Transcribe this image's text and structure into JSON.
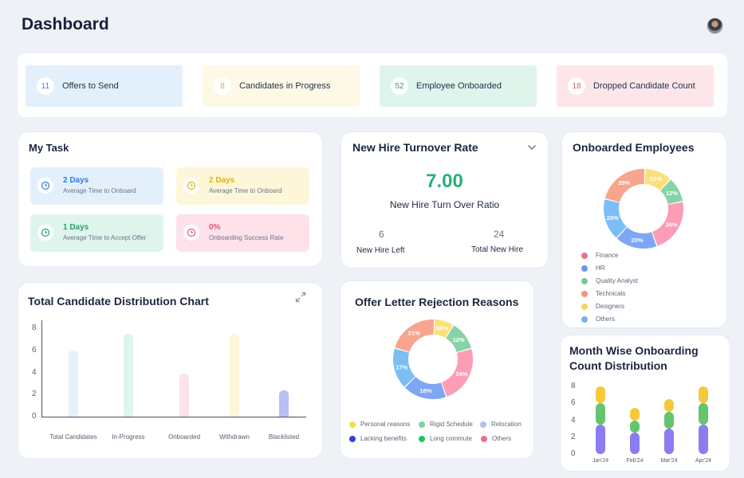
{
  "header": {
    "title": "Dashboard"
  },
  "stats": [
    {
      "count": "11",
      "label": "Offers to Send",
      "bg": "#e3f0fc",
      "accent": "#3b82f6"
    },
    {
      "count": "8",
      "label": "Candidates in Progress",
      "bg": "#fef9e7",
      "accent": "#e3b20b"
    },
    {
      "count": "52",
      "label": "Employee Onboarded",
      "bg": "#dff5ec",
      "accent": "#23a26e"
    },
    {
      "count": "18",
      "label": "Dropped Candidate Count",
      "bg": "#fde6ea",
      "accent": "#e0567a"
    }
  ],
  "my_task": {
    "title": "My Task",
    "items": [
      {
        "value": "2 Days",
        "label": "Average Time to Onboard",
        "color": "#2f7ae5",
        "bg": "#e3f0fc",
        "icon": "clock-icon"
      },
      {
        "value": "2 Days",
        "label": "Average Time to Onboard",
        "color": "#e3b20b",
        "bg": "#fef6d8",
        "icon": "clock-icon"
      },
      {
        "value": "1 Days",
        "label": "Average Time to Accept Offer",
        "color": "#23a26e",
        "bg": "#dff5ec",
        "icon": "clock-icon"
      },
      {
        "value": "0%",
        "label": "Onboarding Success Rate",
        "color": "#e0567a",
        "bg": "#fde2ea",
        "icon": "clock-icon"
      }
    ]
  },
  "turnover": {
    "title": "New Hire Turnover Rate",
    "value": "7.00",
    "ratio_label": "New Hire Turn Over Ratio",
    "left_value": "6",
    "left_label": "New Hire Left",
    "total_value": "24",
    "total_label": "Total New Hire"
  },
  "onboarded": {
    "title": "Onboarded Employees",
    "chart_data": {
      "type": "pie",
      "slices": [
        {
          "name": "Designers",
          "value": 13,
          "label": "13%",
          "color": "#fbe07a"
        },
        {
          "name": "Quality Analyst",
          "value": 12,
          "label": "12%",
          "color": "#86d3a5"
        },
        {
          "name": "Finance",
          "value": 26,
          "label": "26%",
          "color": "#fb9db6"
        },
        {
          "name": "HR",
          "value": 20,
          "label": "20%",
          "color": "#7ea6f4"
        },
        {
          "name": "Others",
          "value": 20,
          "label": "20%",
          "color": "#7cbef4"
        },
        {
          "name": "Technicals",
          "value": 25,
          "label": "25%",
          "color": "#f7a58d"
        }
      ]
    },
    "legend": [
      {
        "label": "Finance",
        "color": "#ef6f8f"
      },
      {
        "label": "HR",
        "color": "#6e94ea"
      },
      {
        "label": "Quality Analyst",
        "color": "#77c795"
      },
      {
        "label": "Technicals",
        "color": "#f3957a"
      },
      {
        "label": "Designers",
        "color": "#f7d461"
      },
      {
        "label": "Others",
        "color": "#6fb2ee"
      }
    ]
  },
  "distribution": {
    "title": "Total Candidate Distribution Chart",
    "chart_data": {
      "type": "bar",
      "categories": [
        "Total Candidates",
        "In-Progress",
        "Onboarded",
        "Withdrawn",
        "Blacklisted"
      ],
      "values": [
        6,
        7.5,
        3.9,
        7.5,
        2.4
      ],
      "colors": [
        "#e3f1fd",
        "#dff5ec",
        "#fde2ea",
        "#fef6d8",
        "#b8bff5"
      ],
      "ylim": [
        0,
        8
      ],
      "yticks": [
        "0",
        "2",
        "4",
        "6",
        "8"
      ]
    }
  },
  "rejection": {
    "title": "Offer Letter Rejection Reasons",
    "chart_data": {
      "type": "pie",
      "slices": [
        {
          "name": "Personal reasons",
          "value": 8,
          "label": "08%",
          "color": "#fbe07a"
        },
        {
          "name": "Rigid Schedule",
          "value": 12,
          "label": "12%",
          "color": "#86d3a5"
        },
        {
          "name": "Relocation",
          "value": 24,
          "label": "24%",
          "color": "#fb9db6"
        },
        {
          "name": "Lacking benefits",
          "value": 18,
          "label": "18%",
          "color": "#7ea6f4"
        },
        {
          "name": "Long commute",
          "value": 17,
          "label": "17%",
          "color": "#7cbef4"
        },
        {
          "name": "Others",
          "value": 21,
          "label": "21%",
          "color": "#f7a58d"
        }
      ]
    },
    "legend": [
      {
        "label": "Personal reasons",
        "color": "#f6dc4a"
      },
      {
        "label": "Rigid Schedule",
        "color": "#7cd3a0"
      },
      {
        "label": "Relocation",
        "color": "#b3bef2"
      },
      {
        "label": "Lacking benefits",
        "color": "#3a3fd8"
      },
      {
        "label": "Long commute",
        "color": "#22c55e"
      },
      {
        "label": "Others",
        "color": "#f56b86"
      }
    ]
  },
  "monthly": {
    "title_line1": "Month Wise Onboarding",
    "title_line2": "Count Distribution",
    "chart_data": {
      "type": "bar",
      "categories": [
        "Jan'24",
        "Feb'24",
        "Mar'24",
        "Apr'24"
      ],
      "series": [
        {
          "values": [
            3.5,
            2.5,
            3,
            3.5
          ],
          "color": "#8b7cf0"
        },
        {
          "values": [
            2.5,
            1.5,
            2,
            2.5
          ],
          "color": "#66c46d"
        },
        {
          "values": [
            2,
            1.5,
            1.5,
            2
          ],
          "color": "#f6c93c"
        }
      ],
      "ylim": [
        0,
        8
      ],
      "yticks": [
        "0",
        "2",
        "4",
        "6",
        "8"
      ]
    }
  }
}
